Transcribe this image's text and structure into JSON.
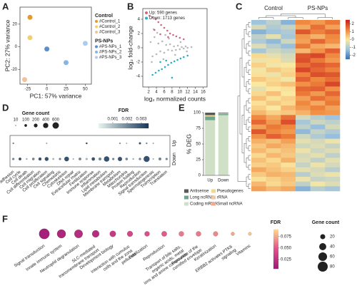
{
  "chart_data": [
    {
      "label": "A",
      "type": "scatter",
      "xlabel": "PC1: 57% variance",
      "ylabel": "PC2: 27% variance",
      "xlim": [
        -35,
        58
      ],
      "ylim": [
        -33,
        35
      ],
      "xticks": [
        -25,
        0,
        25,
        50
      ],
      "yticks": [
        -20,
        0,
        20
      ],
      "groups": [
        {
          "title": "Control",
          "series": [
            {
              "name": "#Control_1",
              "color": "#e39a2e",
              "x": [
                -22
              ],
              "y": [
                26
              ]
            },
            {
              "name": "#Control_2",
              "color": "#f2cf6e",
              "x": [
                -22
              ],
              "y": [
                8
              ]
            },
            {
              "name": "#Control_3",
              "color": "#f0c39a",
              "x": [
                -29
              ],
              "y": [
                -29
              ]
            }
          ]
        },
        {
          "title": "PS-NPs",
          "series": [
            {
              "name": "#PS-NPs_1",
              "color": "#5a8fd0",
              "x": [
                0
              ],
              "y": [
                -2
              ]
            },
            {
              "name": "#PS-NPs_2",
              "color": "#86b4e6",
              "x": [
                25
              ],
              "y": [
                -14
              ]
            },
            {
              "name": "#PS-NPs_3",
              "color": "#a9cdf0",
              "x": [
                50
              ],
              "y": [
                3
              ]
            }
          ]
        }
      ]
    },
    {
      "label": "B",
      "type": "scatter",
      "xlabel": "log₂ normalized counts",
      "ylabel": "log₂ fold-change",
      "xlim": [
        0.5,
        17
      ],
      "ylim": [
        -5.5,
        5.5
      ],
      "xticks": [
        2,
        4,
        6,
        8,
        10,
        12,
        14,
        16
      ],
      "yticks": [
        -4,
        -2,
        0,
        2,
        4
      ],
      "series": [
        {
          "color": "#b8b8b8",
          "x": [
            2.5,
            3,
            3.5,
            4,
            4.5,
            5,
            5.5,
            6,
            6.5,
            7,
            7.5,
            8,
            8.5,
            9,
            9.5,
            10,
            10.5,
            11,
            11.5,
            12,
            2.8,
            4.2,
            5.8,
            7.2,
            8.8,
            10.2,
            11.8,
            13,
            3.3,
            6.3
          ],
          "y": [
            0.8,
            -1.2,
            1.5,
            -0.9,
            0.6,
            -0.5,
            0.9,
            -0.7,
            0.4,
            -0.3,
            0.5,
            -0.4,
            0.2,
            -0.3,
            0.3,
            -0.2,
            0.1,
            -0.1,
            0.2,
            0.0,
            -2.0,
            2.1,
            -1.6,
            1.3,
            -1.0,
            0.8,
            -0.5,
            0.1,
            2.6,
            1.8
          ]
        },
        {
          "name": "Up: 590 genes",
          "color": "#c96a80",
          "x": [
            2.2,
            3.0,
            3.8,
            4.5,
            5.2,
            6,
            6.8,
            7.5,
            8.3,
            9.1,
            10,
            11,
            3.5,
            5,
            7
          ],
          "y": [
            4.5,
            4.3,
            4.0,
            3.6,
            3.2,
            2.8,
            2.4,
            2.0,
            1.8,
            1.6,
            1.4,
            1.2,
            2.5,
            1.9,
            1.5
          ]
        },
        {
          "name": "Down: 1713 genes",
          "color": "#2aaec4",
          "x": [
            3,
            3.8,
            4.6,
            5.4,
            6.2,
            7,
            7.8,
            8.6,
            9.4,
            10.2,
            11,
            12,
            5,
            6.5,
            8
          ],
          "y": [
            -3.8,
            -3.5,
            -3.2,
            -3.0,
            -2.7,
            -2.4,
            -2.1,
            -1.9,
            -1.7,
            -1.5,
            -1.3,
            -1.1,
            -2.0,
            -1.8,
            -4.2
          ]
        }
      ]
    },
    {
      "label": "C",
      "type": "heatmap",
      "column_groups": [
        "Control",
        "PS-NPs"
      ],
      "cmap": [
        "#3a6fb0",
        "#9cc3e0",
        "#fbe8a0",
        "#f0853c",
        "#c81e1e"
      ],
      "clim": [
        -2.5,
        2.5
      ],
      "cticks": [
        2,
        1,
        0,
        -1,
        -2
      ],
      "values": [
        [
          -1.2,
          -0.8,
          -1.5,
          1.2,
          1.0,
          1.4
        ],
        [
          -0.5,
          -1.0,
          -0.7,
          0.8,
          1.5,
          0.9
        ],
        [
          -1.5,
          -1.2,
          -1.0,
          1.8,
          1.3,
          1.6
        ],
        [
          -0.8,
          -0.3,
          -1.1,
          1.0,
          0.7,
          1.2
        ],
        [
          -1.0,
          -1.4,
          -0.6,
          0.9,
          1.6,
          1.1
        ],
        [
          -0.4,
          -0.9,
          -1.3,
          1.4,
          0.8,
          0.6
        ],
        [
          -1.1,
          -0.6,
          -0.8,
          0.6,
          1.1,
          1.7
        ],
        [
          0.2,
          -0.3,
          -0.5,
          1.8,
          2.0,
          1.2
        ],
        [
          -0.2,
          0.1,
          -0.4,
          1.9,
          1.4,
          1.0
        ],
        [
          0.3,
          -0.1,
          0.0,
          1.5,
          1.8,
          1.6
        ],
        [
          -0.1,
          0.4,
          0.2,
          2.0,
          1.6,
          1.3
        ],
        [
          0.1,
          -0.2,
          0.3,
          1.3,
          1.9,
          1.8
        ],
        [
          0.4,
          0.2,
          -0.1,
          1.7,
          1.2,
          1.5
        ],
        [
          0.0,
          0.3,
          0.5,
          1.1,
          1.4,
          2.0
        ],
        [
          -0.3,
          0.0,
          0.1,
          1.6,
          1.7,
          1.1
        ],
        [
          0.2,
          0.5,
          0.0,
          1.4,
          1.0,
          1.6
        ],
        [
          0.5,
          0.1,
          0.3,
          0.9,
          1.5,
          1.2
        ],
        [
          0.1,
          0.4,
          0.2,
          1.2,
          0.8,
          1.4
        ],
        [
          0.3,
          0.0,
          0.6,
          1.0,
          1.3,
          0.9
        ],
        [
          0.6,
          0.3,
          0.4,
          0.7,
          1.1,
          1.0
        ],
        [
          1.2,
          0.8,
          1.5,
          -0.5,
          -0.9,
          -1.2
        ],
        [
          1.6,
          1.0,
          1.9,
          -1.1,
          -0.6,
          -0.8
        ],
        [
          0.9,
          1.4,
          1.2,
          -0.8,
          -1.3,
          -0.5
        ],
        [
          1.8,
          1.2,
          1.0,
          -1.4,
          -0.7,
          -1.0
        ],
        [
          1.1,
          1.7,
          1.4,
          -0.6,
          -1.0,
          -1.3
        ],
        [
          0.7,
          0.5,
          0.9,
          -0.3,
          -0.5,
          -0.2
        ],
        [
          0.4,
          0.8,
          0.6,
          -0.6,
          -0.4,
          -0.7
        ],
        [
          0.6,
          0.3,
          0.5,
          -0.2,
          -0.6,
          -0.4
        ],
        [
          0.2,
          0.6,
          0.4,
          -0.5,
          -0.3,
          -0.8
        ],
        [
          0.5,
          0.2,
          0.7,
          -0.4,
          -0.8,
          -0.3
        ],
        [
          0.3,
          0.4,
          0.1,
          -0.7,
          -0.2,
          -0.5
        ],
        [
          0.8,
          0.5,
          0.3,
          -0.3,
          -0.5,
          -0.9
        ],
        [
          0.4,
          0.7,
          0.6,
          -0.9,
          -0.4,
          -0.2
        ],
        [
          0.1,
          0.3,
          0.5,
          -0.2,
          -0.7,
          -0.6
        ],
        [
          0.6,
          0.2,
          0.4,
          -0.8,
          -0.1,
          -0.4
        ],
        [
          0.9,
          0.6,
          0.8,
          -1.5,
          -0.9,
          -1.1
        ]
      ]
    },
    {
      "label": "D",
      "type": "dot",
      "frame": true,
      "size_title": "Gene count",
      "size_ticks": [
        10,
        100,
        200,
        400,
        600
      ],
      "fdr_title": "FDR",
      "fdr_lim": [
        0,
        0.0035
      ],
      "fdr_ticks": [
        0.001,
        0.002,
        0.003
      ],
      "cmap": [
        "#e8f5ef",
        "#17375e"
      ],
      "categories": [
        "Cell adhesion",
        "Cell cycle",
        "Cell death",
        "Cell differentiation",
        "Cell migration",
        "Cell proliferation",
        "Cell signaling",
        "Chemotaxis",
        "Cytoskeleton",
        "DNA repair",
        "Extracellular matrix",
        "Fertilization",
        "Immune response",
        "Inflammation",
        "Lipid metabolism",
        "Membrane transport",
        "Metabolism",
        "Mitochondria",
        "Protein folding",
        "Reproduction",
        "Signal transduction",
        "Spermatogenesis",
        "Transcription",
        "Translation"
      ],
      "series": [
        {
          "name": "Up",
          "sizes": [
            30,
            null,
            null,
            null,
            null,
            20,
            null,
            null,
            null,
            null,
            null,
            40,
            null,
            null,
            null,
            null,
            25,
            15,
            null,
            60,
            30,
            20,
            null,
            null
          ],
          "fdr": [
            0.002,
            null,
            null,
            null,
            null,
            0.001,
            null,
            null,
            null,
            null,
            null,
            0.003,
            null,
            null,
            null,
            null,
            0.002,
            0.001,
            null,
            0.003,
            0.002,
            0.001,
            null,
            null
          ]
        },
        {
          "name": "Down",
          "sizes": [
            60,
            100,
            30,
            80,
            120,
            200,
            40,
            60,
            300,
            20,
            90,
            50,
            150,
            100,
            400,
            60,
            250,
            80,
            30,
            70,
            500,
            20,
            100,
            60
          ],
          "fdr": [
            0.002,
            0.003,
            0.001,
            0.002,
            0.003,
            0.003,
            0.001,
            0.002,
            0.003,
            0.001,
            0.002,
            0.001,
            0.003,
            0.002,
            0.003,
            0.002,
            0.003,
            0.002,
            0.001,
            0.002,
            0.003,
            0.001,
            0.002,
            0.002
          ]
        }
      ]
    },
    {
      "label": "E",
      "type": "stacked_bar",
      "ylabel": "% DEG",
      "ylim": [
        0,
        100
      ],
      "yticks": [
        0,
        25,
        50,
        75,
        100
      ],
      "categories": [
        "Up",
        "Down"
      ],
      "series": [
        {
          "name": "Antisense",
          "color": "#555a5a",
          "values": [
            4,
            1
          ]
        },
        {
          "name": "Pseudogenes",
          "color": "#f1d690",
          "values": [
            2,
            1
          ]
        },
        {
          "name": "Long ncRNA",
          "color": "#6fa58c",
          "values": [
            6,
            2
          ]
        },
        {
          "name": "rRNA",
          "color": "#e9c9a8",
          "values": [
            0,
            0
          ]
        },
        {
          "name": "Coding mRNA",
          "color": "#cfe0c6",
          "values": [
            88,
            96
          ]
        },
        {
          "name": "Small ncRNA",
          "color": "#f3a98a",
          "values": [
            0,
            0
          ]
        }
      ]
    },
    {
      "label": "F",
      "type": "dot",
      "frame": false,
      "size_title": "Gene count",
      "size_ticks": [
        20,
        40,
        60,
        80
      ],
      "fdr_title": "FDR",
      "fdr_lim": [
        0.005,
        0.09
      ],
      "fdr_ticks": [
        0.025,
        {
          "value": 0.05,
          "label": "0.050"
        },
        0.075
      ],
      "cmap": [
        "#9c1a78",
        "#e0508a",
        "#ffd88a"
      ],
      "categories": [
        "Signal transduction",
        "Innate immune system",
        "Neutrophil degranulation",
        "SLC-mediated transmembrane transport",
        "Development biology",
        "Interaction with cumulus cells and the zona pellucida",
        "Fertilization",
        "Reproduction",
        "Transport of bile salts, organic acids, metal ions and amine compounds",
        "Formation of the cornified envelope",
        "Keratinization",
        "ERBB2 activates PTK6 signaling",
        "Vitamins"
      ],
      "series": [
        {
          "sizes": [
            85,
            60,
            55,
            40,
            30,
            25,
            20,
            22,
            20,
            20,
            18,
            10,
            8
          ],
          "fdr": [
            0.01,
            0.015,
            0.02,
            0.02,
            0.03,
            0.04,
            0.045,
            0.05,
            0.06,
            0.06,
            0.065,
            0.075,
            0.085
          ]
        }
      ]
    }
  ]
}
